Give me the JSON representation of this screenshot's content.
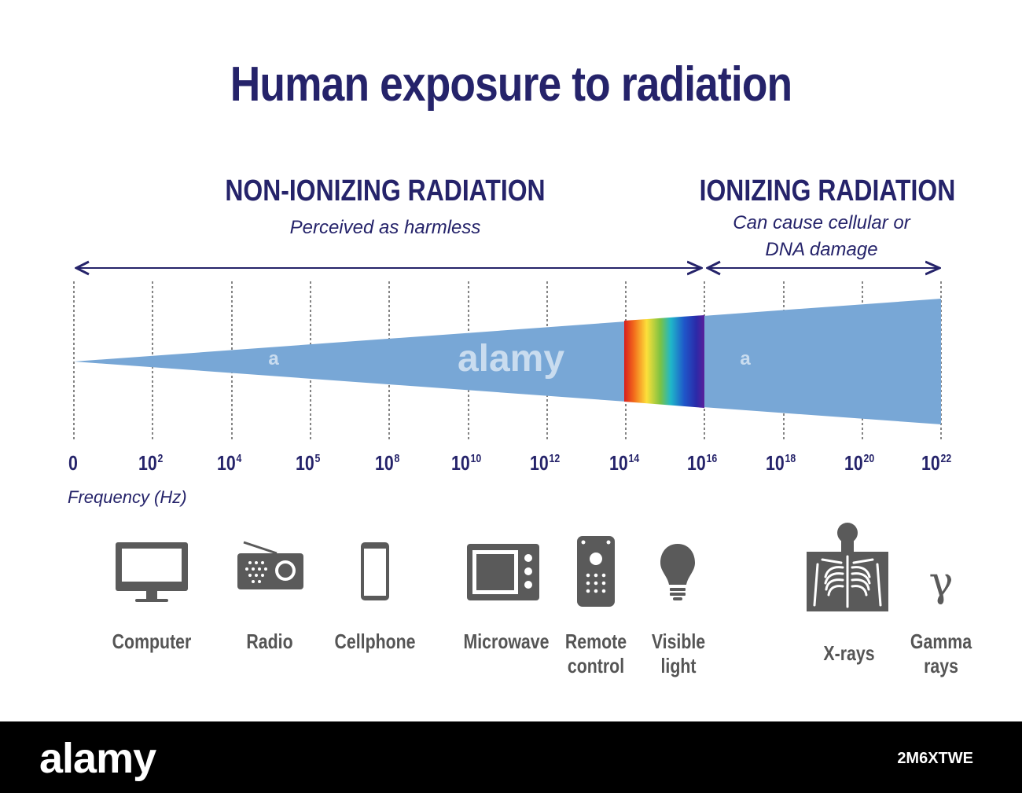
{
  "title": "Human exposure to radiation",
  "non_ionizing": {
    "heading": "NON-IONIZING RADIATION",
    "subtitle": "Perceived as harmless"
  },
  "ionizing": {
    "heading": "IONIZING RADIATION",
    "subtitle_line1": "Can cause cellular or",
    "subtitle_line2": "DNA damage"
  },
  "axis": {
    "label": "Frequency (Hz)",
    "ticks": [
      {
        "base": "0",
        "exp": ""
      },
      {
        "base": "10",
        "exp": "2"
      },
      {
        "base": "10",
        "exp": "4"
      },
      {
        "base": "10",
        "exp": "5"
      },
      {
        "base": "10",
        "exp": "8"
      },
      {
        "base": "10",
        "exp": "10"
      },
      {
        "base": "10",
        "exp": "12"
      },
      {
        "base": "10",
        "exp": "14"
      },
      {
        "base": "10",
        "exp": "16"
      },
      {
        "base": "10",
        "exp": "18"
      },
      {
        "base": "10",
        "exp": "20"
      },
      {
        "base": "10",
        "exp": "22"
      }
    ]
  },
  "sources": [
    {
      "label": "Computer",
      "icon": "computer-icon"
    },
    {
      "label": "Radio",
      "icon": "radio-icon"
    },
    {
      "label": "Cellphone",
      "icon": "cellphone-icon"
    },
    {
      "label": "Microwave",
      "icon": "microwave-icon"
    },
    {
      "label_line1": "Remote",
      "label_line2": "control",
      "icon": "remote-control-icon"
    },
    {
      "label_line1": "Visible",
      "label_line2": "light",
      "icon": "light-bulb-icon"
    },
    {
      "label": "X-rays",
      "icon": "xray-icon"
    },
    {
      "label_line1": "Gamma",
      "label_line2": "rays",
      "icon": "gamma-icon",
      "symbol": "γ"
    }
  ],
  "watermark": {
    "center": "alamy",
    "small": "a"
  },
  "footer": {
    "brand": "alamy",
    "image_code": "2M6XTWE"
  },
  "colors": {
    "navy": "#25236a",
    "beam": "#78a7d6",
    "icon_gray": "#5a5a5a",
    "footer_bg": "#000000"
  }
}
